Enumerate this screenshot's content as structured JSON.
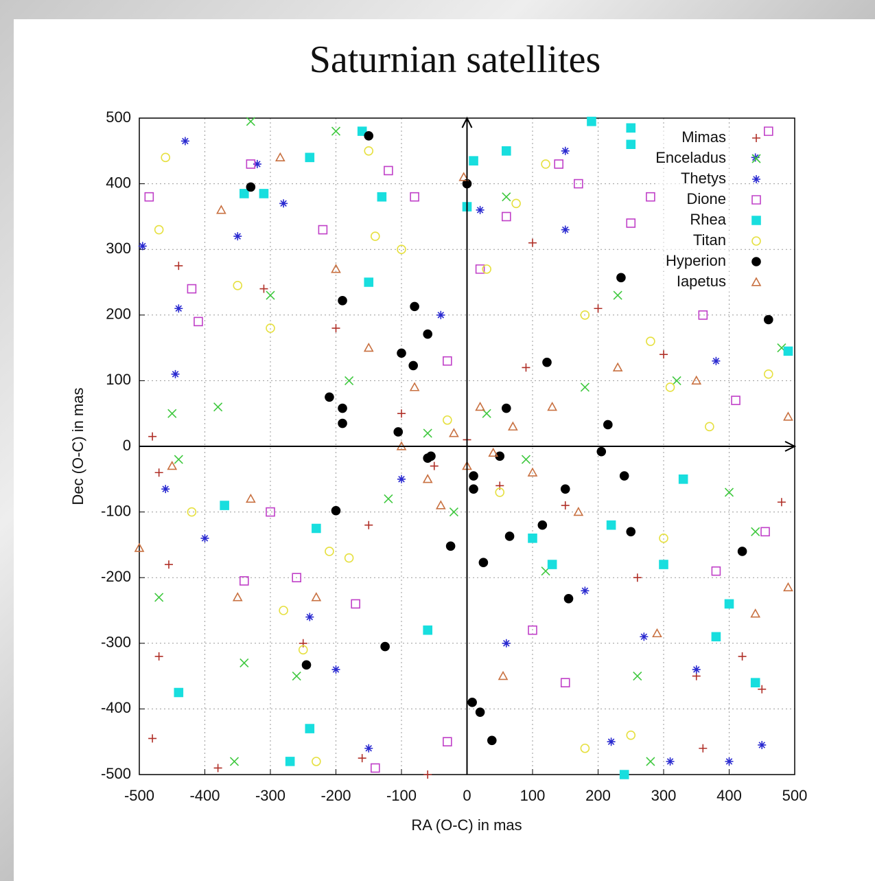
{
  "chart_data": {
    "type": "scatter",
    "title": "Saturnian satellites",
    "x_label": "RA (O-C) in mas",
    "y_label": "Dec (O-C) in mas",
    "xlim": [
      -500,
      500
    ],
    "ylim": [
      -500,
      500
    ],
    "xticks": [
      -500,
      -400,
      -300,
      -200,
      -100,
      0,
      100,
      200,
      300,
      400,
      500
    ],
    "yticks": [
      -500,
      -400,
      -300,
      -200,
      -100,
      0,
      100,
      200,
      300,
      400,
      500
    ],
    "grid": true,
    "legend": "upper right",
    "series": [
      {
        "name": "Mimas",
        "color": "#b03028",
        "marker": "plus",
        "x": [
          -480,
          -470,
          -440,
          -455,
          -470,
          -480,
          -380,
          -310,
          -250,
          -200,
          -150,
          -100,
          -50,
          0,
          50,
          90,
          150,
          200,
          260,
          300,
          350,
          420,
          450,
          480,
          -160,
          100,
          360,
          -60
        ],
        "y": [
          15,
          -40,
          275,
          -180,
          -320,
          -445,
          -490,
          240,
          -300,
          180,
          -120,
          50,
          -30,
          10,
          -60,
          120,
          -90,
          210,
          -200,
          140,
          -350,
          -320,
          -370,
          -85,
          -475,
          310,
          -460,
          -500
        ]
      },
      {
        "name": "Enceladus",
        "color": "#3ec83e",
        "marker": "cross",
        "x": [
          -470,
          -450,
          -440,
          -380,
          -340,
          -300,
          -260,
          -200,
          -180,
          -120,
          -60,
          -20,
          30,
          60,
          90,
          120,
          180,
          230,
          260,
          320,
          400,
          440,
          480,
          -355,
          280,
          -330
        ],
        "y": [
          -230,
          50,
          -20,
          60,
          -330,
          230,
          -350,
          480,
          100,
          -80,
          20,
          -100,
          50,
          380,
          -20,
          -190,
          90,
          230,
          -350,
          100,
          -70,
          -130,
          150,
          -480,
          -480,
          495
        ]
      },
      {
        "name": "Thetys",
        "color": "#2a2ad0",
        "marker": "star",
        "x": [
          -495,
          -430,
          -440,
          -445,
          -460,
          -400,
          -350,
          -320,
          -280,
          -240,
          -200,
          -150,
          -100,
          -40,
          20,
          60,
          150,
          180,
          220,
          270,
          310,
          350,
          400,
          450,
          440,
          380,
          150
        ],
        "y": [
          305,
          465,
          210,
          110,
          -65,
          -140,
          320,
          430,
          370,
          -260,
          -340,
          -460,
          -50,
          200,
          360,
          -300,
          450,
          -220,
          -450,
          -290,
          -480,
          -340,
          -480,
          -455,
          440,
          130,
          330
        ]
      },
      {
        "name": "Dione",
        "color": "#c040c8",
        "marker": "square-open",
        "x": [
          -485,
          -420,
          -410,
          -340,
          -330,
          -300,
          -260,
          -220,
          -170,
          -120,
          -80,
          -30,
          20,
          60,
          100,
          150,
          170,
          250,
          280,
          360,
          410,
          460,
          455,
          -30,
          140,
          380,
          -140
        ],
        "y": [
          380,
          240,
          190,
          -205,
          430,
          -100,
          -200,
          330,
          -240,
          420,
          380,
          130,
          270,
          350,
          -280,
          -360,
          400,
          340,
          380,
          200,
          70,
          480,
          -130,
          -450,
          430,
          -190,
          -490
        ]
      },
      {
        "name": "Rhea",
        "color": "#18dede",
        "marker": "square",
        "x": [
          -440,
          -370,
          -340,
          -310,
          -240,
          -270,
          -230,
          -160,
          -130,
          -60,
          0,
          10,
          60,
          100,
          130,
          190,
          250,
          250,
          220,
          300,
          330,
          380,
          400,
          440,
          490,
          240,
          -240,
          -150
        ],
        "y": [
          -375,
          -90,
          385,
          385,
          440,
          -480,
          -125,
          480,
          380,
          -280,
          365,
          435,
          450,
          -140,
          -180,
          495,
          460,
          485,
          -120,
          -180,
          -50,
          -290,
          -240,
          -360,
          145,
          -500,
          -430,
          250
        ]
      },
      {
        "name": "Titan",
        "color": "#e6e040",
        "marker": "circle-open",
        "x": [
          -460,
          -470,
          -420,
          -350,
          -300,
          -280,
          -250,
          -210,
          -180,
          -150,
          -100,
          -30,
          30,
          75,
          120,
          180,
          250,
          280,
          300,
          310,
          370,
          460,
          180,
          -230,
          50,
          -140
        ],
        "y": [
          440,
          330,
          -100,
          245,
          180,
          -250,
          -310,
          -160,
          -170,
          450,
          300,
          40,
          270,
          370,
          430,
          200,
          -440,
          160,
          -140,
          90,
          30,
          110,
          -460,
          -480,
          -70,
          320
        ]
      },
      {
        "name": "Hyperion",
        "color": "#000000",
        "marker": "circle",
        "x": [
          -150,
          0,
          -330,
          -190,
          -80,
          -60,
          -100,
          -82,
          235,
          460,
          -210,
          -190,
          -190,
          -105,
          60,
          122,
          215,
          205,
          240,
          150,
          115,
          65,
          -25,
          25,
          155,
          -200,
          250,
          420,
          -125,
          -245,
          8,
          20,
          38,
          -55,
          -60,
          50,
          10,
          10
        ],
        "y": [
          473,
          400,
          395,
          222,
          213,
          171,
          142,
          123,
          257,
          193,
          75,
          58,
          35,
          22,
          58,
          128,
          33,
          -8,
          -45,
          -65,
          -120,
          -137,
          -152,
          -177,
          -232,
          -98,
          -130,
          -160,
          -305,
          -333,
          -390,
          -405,
          -448,
          -15,
          -18,
          -15,
          -45,
          -65
        ]
      },
      {
        "name": "Iapetus",
        "color": "#c87040",
        "marker": "triangle-open",
        "x": [
          -500,
          -450,
          -375,
          -350,
          -330,
          -285,
          -200,
          -150,
          -100,
          -60,
          -20,
          0,
          20,
          40,
          70,
          100,
          -40,
          -80,
          130,
          170,
          230,
          290,
          350,
          440,
          490,
          490,
          -5,
          -230,
          55
        ],
        "y": [
          -155,
          -30,
          360,
          -230,
          -80,
          440,
          270,
          150,
          0,
          -50,
          20,
          -30,
          60,
          -10,
          30,
          -40,
          -90,
          90,
          60,
          -100,
          120,
          -285,
          100,
          -255,
          -215,
          45,
          410,
          -230,
          -350
        ]
      }
    ]
  }
}
